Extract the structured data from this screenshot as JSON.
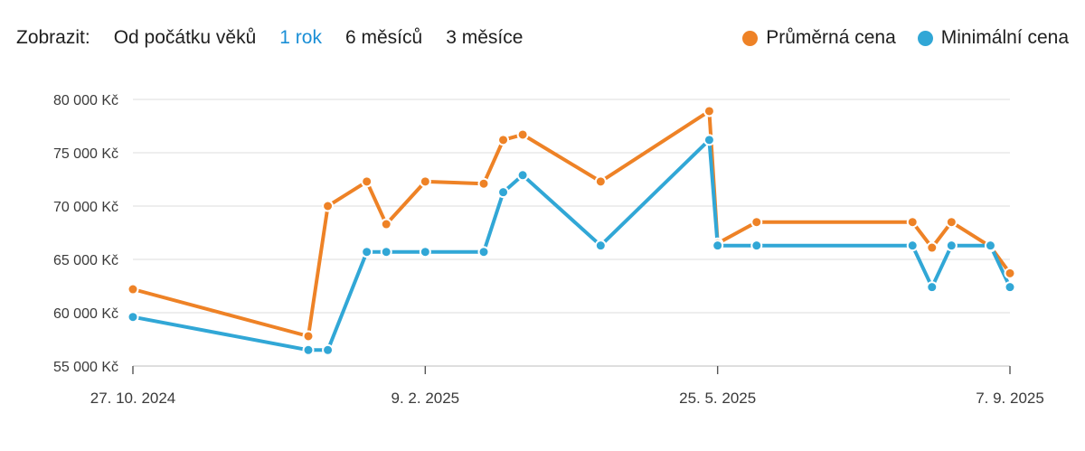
{
  "controls": {
    "label": "Zobrazit:",
    "options": [
      "Od počátku věků",
      "1 rok",
      "6 měsíců",
      "3 měsíce"
    ],
    "active_index": 1
  },
  "colors": {
    "avg": "#ee8226",
    "min": "#31a7d6",
    "active_option": "#1a8fd6",
    "grid": "#dddddd"
  },
  "chart_data": {
    "type": "line",
    "xaxis": {
      "ticks": [
        "27. 10. 2024",
        "9. 2. 2025",
        "25. 5. 2025",
        "7. 9. 2025"
      ],
      "range": [
        "2024-10-27",
        "2025-09-07"
      ]
    },
    "yaxis": {
      "ticks": [
        "55 000 Kč",
        "60 000 Kč",
        "65 000 Kč",
        "70 000 Kč",
        "75 000 Kč",
        "80 000 Kč"
      ],
      "ylim": [
        55000,
        80000
      ]
    },
    "grid": true,
    "legend_position": "top-right",
    "series": [
      {
        "name": "Průměrná cena",
        "color": "#ee8226",
        "points": [
          [
            "2024-10-27",
            62200
          ],
          [
            "2024-12-29",
            57800
          ],
          [
            "2025-01-05",
            70000
          ],
          [
            "2025-01-19",
            72300
          ],
          [
            "2025-01-26",
            68300
          ],
          [
            "2025-02-09",
            72300
          ],
          [
            "2025-03-02",
            72100
          ],
          [
            "2025-03-09",
            76200
          ],
          [
            "2025-03-16",
            76700
          ],
          [
            "2025-04-13",
            72300
          ],
          [
            "2025-05-22",
            78900
          ],
          [
            "2025-05-25",
            66500
          ],
          [
            "2025-06-08",
            68500
          ],
          [
            "2025-08-03",
            68500
          ],
          [
            "2025-08-10",
            66100
          ],
          [
            "2025-08-17",
            68500
          ],
          [
            "2025-08-31",
            66200
          ],
          [
            "2025-09-07",
            63700
          ]
        ]
      },
      {
        "name": "Minimální cena",
        "color": "#31a7d6",
        "points": [
          [
            "2024-10-27",
            59600
          ],
          [
            "2024-12-29",
            56500
          ],
          [
            "2025-01-05",
            56500
          ],
          [
            "2025-01-19",
            65700
          ],
          [
            "2025-01-26",
            65700
          ],
          [
            "2025-02-09",
            65700
          ],
          [
            "2025-03-02",
            65700
          ],
          [
            "2025-03-09",
            71300
          ],
          [
            "2025-03-16",
            72900
          ],
          [
            "2025-04-13",
            66300
          ],
          [
            "2025-05-22",
            76200
          ],
          [
            "2025-05-25",
            66300
          ],
          [
            "2025-06-08",
            66300
          ],
          [
            "2025-08-03",
            66300
          ],
          [
            "2025-08-10",
            62400
          ],
          [
            "2025-08-17",
            66300
          ],
          [
            "2025-08-31",
            66300
          ],
          [
            "2025-09-07",
            62400
          ]
        ]
      }
    ]
  }
}
